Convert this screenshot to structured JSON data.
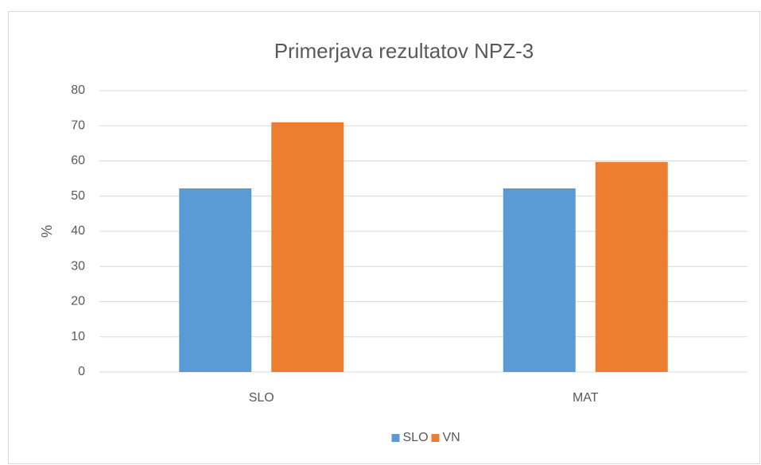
{
  "chart_data": {
    "type": "bar",
    "title": "Primerjava rezultatov NPZ-3",
    "ylabel": "%",
    "categories": [
      "SLO",
      "MAT"
    ],
    "series": [
      {
        "name": "SLO",
        "color": "#5b9bd5",
        "values": [
          52.2,
          52.2
        ]
      },
      {
        "name": "VN",
        "color": "#ed7d31",
        "values": [
          71,
          59.7
        ]
      }
    ],
    "ylim": [
      0,
      80
    ],
    "yticks": [
      0,
      10,
      20,
      30,
      40,
      50,
      60,
      70,
      80
    ],
    "grid": true,
    "legend": "bottom"
  }
}
